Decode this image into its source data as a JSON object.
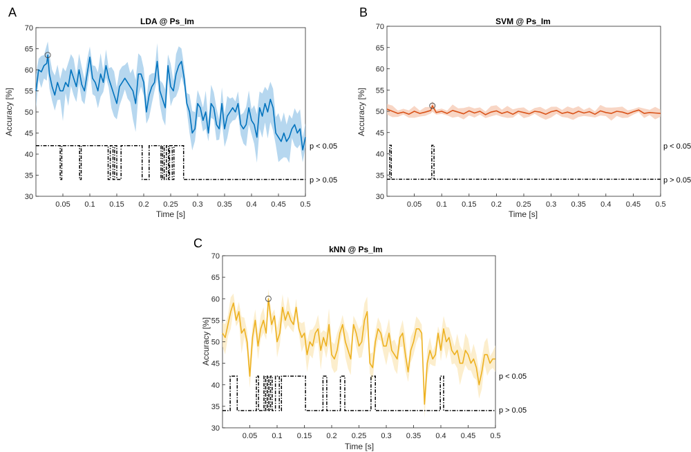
{
  "chart_data": [
    {
      "panel_label": "A",
      "title": "LDA @ Ps_Im",
      "type": "line",
      "xlabel": "Time [s]",
      "ylabel": "Accuracy [%]",
      "xlim": [
        0,
        0.5
      ],
      "ylim": [
        30,
        70
      ],
      "xticks": [
        "0.05",
        "0.1",
        "0.15",
        "0.2",
        "0.25",
        "0.3",
        "0.35",
        "0.4",
        "0.45",
        "0.5"
      ],
      "yticks": [
        "30",
        "35",
        "40",
        "45",
        "50",
        "55",
        "60",
        "65",
        "70"
      ],
      "color": "#0072BD",
      "band_color": "#9ECAE9",
      "sig_high_label": "p < 0.05",
      "sig_low_label": "p > 0.05",
      "sig_high_y": 42,
      "sig_low_y": 34,
      "peak": {
        "x": 0.022,
        "y": 63.5
      },
      "sig_low_intervals": [
        [
          0.045,
          0.048
        ],
        [
          0.081,
          0.084
        ],
        [
          0.134,
          0.138
        ],
        [
          0.143,
          0.146
        ],
        [
          0.15,
          0.158
        ],
        [
          0.197,
          0.21
        ],
        [
          0.232,
          0.235
        ],
        [
          0.238,
          0.242
        ],
        [
          0.246,
          0.248
        ],
        [
          0.253,
          0.256
        ],
        [
          0.274,
          0.5
        ]
      ],
      "x": [
        0,
        0.005,
        0.01,
        0.015,
        0.02,
        0.022,
        0.025,
        0.03,
        0.035,
        0.04,
        0.045,
        0.05,
        0.055,
        0.06,
        0.065,
        0.07,
        0.075,
        0.08,
        0.085,
        0.09,
        0.095,
        0.1,
        0.105,
        0.11,
        0.115,
        0.12,
        0.125,
        0.13,
        0.135,
        0.14,
        0.145,
        0.15,
        0.155,
        0.16,
        0.165,
        0.17,
        0.175,
        0.18,
        0.185,
        0.19,
        0.195,
        0.2,
        0.205,
        0.21,
        0.215,
        0.22,
        0.225,
        0.23,
        0.235,
        0.24,
        0.245,
        0.25,
        0.255,
        0.26,
        0.265,
        0.27,
        0.275,
        0.28,
        0.285,
        0.29,
        0.295,
        0.3,
        0.305,
        0.31,
        0.315,
        0.32,
        0.325,
        0.33,
        0.335,
        0.34,
        0.345,
        0.35,
        0.355,
        0.36,
        0.365,
        0.37,
        0.375,
        0.38,
        0.385,
        0.39,
        0.395,
        0.4,
        0.405,
        0.41,
        0.415,
        0.42,
        0.425,
        0.43,
        0.435,
        0.44,
        0.445,
        0.45,
        0.455,
        0.46,
        0.465,
        0.47,
        0.475,
        0.48,
        0.485,
        0.49,
        0.495,
        0.5
      ],
      "y": [
        55,
        60,
        59.5,
        61,
        61.5,
        63.5,
        59,
        56,
        54,
        57,
        55,
        55,
        57,
        56,
        60,
        58,
        56,
        60,
        56.5,
        55,
        59,
        63,
        58,
        57,
        55,
        59,
        57,
        61,
        58,
        56,
        54,
        52,
        56,
        57,
        58,
        57,
        56,
        55,
        52,
        59,
        59,
        57,
        50,
        54,
        56,
        57,
        62,
        55,
        53,
        51,
        61,
        56,
        55,
        59,
        61,
        62,
        58,
        52,
        50,
        45,
        46,
        52,
        51,
        48,
        50,
        45,
        52,
        51,
        47,
        46,
        52,
        46,
        49,
        50,
        51,
        50,
        52,
        47,
        46,
        47,
        51,
        48,
        47,
        44,
        51,
        49,
        52,
        50,
        53,
        51,
        45,
        44,
        43,
        45,
        43,
        44,
        46,
        47,
        45,
        46,
        41,
        44
      ]
    },
    {
      "panel_label": "B",
      "title": "SVM @ Ps_Im",
      "type": "line",
      "xlabel": "Time [s]",
      "ylabel": "Accuracy [%]",
      "xlim": [
        0,
        0.5
      ],
      "ylim": [
        30,
        70
      ],
      "xticks": [
        "0.05",
        "0.1",
        "0.15",
        "0.2",
        "0.25",
        "0.3",
        "0.35",
        "0.4",
        "0.45",
        "0.5"
      ],
      "yticks": [
        "30",
        "35",
        "40",
        "45",
        "50",
        "55",
        "60",
        "65",
        "70"
      ],
      "color": "#D95319",
      "band_color": "#F5C8B2",
      "sig_high_label": "p < 0.05",
      "sig_low_label": "p > 0.05",
      "sig_high_y": 42,
      "sig_low_y": 34,
      "peak": {
        "x": 0.083,
        "y": 51.3
      },
      "sig_high_intervals": [
        [
          0.005,
          0.008
        ],
        [
          0.082,
          0.086
        ]
      ],
      "x": [
        0,
        0.01,
        0.02,
        0.03,
        0.04,
        0.05,
        0.06,
        0.07,
        0.08,
        0.083,
        0.09,
        0.1,
        0.11,
        0.12,
        0.13,
        0.14,
        0.15,
        0.16,
        0.17,
        0.18,
        0.19,
        0.2,
        0.21,
        0.22,
        0.23,
        0.24,
        0.25,
        0.26,
        0.27,
        0.28,
        0.29,
        0.3,
        0.31,
        0.32,
        0.33,
        0.34,
        0.35,
        0.36,
        0.37,
        0.38,
        0.39,
        0.4,
        0.41,
        0.42,
        0.43,
        0.44,
        0.45,
        0.46,
        0.47,
        0.48,
        0.49,
        0.5
      ],
      "y": [
        50.5,
        50,
        49.5,
        49.8,
        49.3,
        50,
        49.5,
        49.8,
        50.2,
        51.3,
        49.7,
        50,
        49.5,
        50.2,
        49.8,
        49.4,
        50.1,
        49.6,
        50,
        49.2,
        49.8,
        50.1,
        49.5,
        49.9,
        49.3,
        50,
        49.7,
        49.4,
        50,
        49.8,
        49.3,
        49.9,
        50.2,
        49.5,
        49.8,
        49.4,
        50,
        49.6,
        49.9,
        49.3,
        50.1,
        49.7,
        49.5,
        50,
        49.8,
        49.4,
        49.9,
        50.3,
        49.5,
        49.7,
        49.6,
        49.5
      ]
    },
    {
      "panel_label": "C",
      "title": "kNN @ Ps_Im",
      "type": "line",
      "xlabel": "Time [s]",
      "ylabel": "Accuracy [%]",
      "xlim": [
        0,
        0.5
      ],
      "ylim": [
        30,
        70
      ],
      "xticks": [
        "0.05",
        "0.1",
        "0.15",
        "0.2",
        "0.25",
        "0.3",
        "0.35",
        "0.4",
        "0.45",
        "0.5"
      ],
      "yticks": [
        "30",
        "35",
        "40",
        "45",
        "50",
        "55",
        "60",
        "65",
        "70"
      ],
      "color": "#EDB120",
      "band_color": "#FBE8BC",
      "sig_high_label": "p < 0.05",
      "sig_low_label": "p > 0.05",
      "sig_high_y": 42,
      "sig_low_y": 34,
      "peak": {
        "x": 0.084,
        "y": 60
      },
      "sig_high_intervals": [
        [
          0.014,
          0.027
        ],
        [
          0.062,
          0.066
        ],
        [
          0.076,
          0.079
        ],
        [
          0.082,
          0.085
        ],
        [
          0.088,
          0.091
        ],
        [
          0.097,
          0.104
        ],
        [
          0.108,
          0.152
        ],
        [
          0.184,
          0.191
        ],
        [
          0.216,
          0.224
        ],
        [
          0.272,
          0.28
        ],
        [
          0.399,
          0.405
        ]
      ],
      "x": [
        0,
        0.005,
        0.01,
        0.015,
        0.02,
        0.025,
        0.03,
        0.035,
        0.04,
        0.045,
        0.05,
        0.055,
        0.06,
        0.065,
        0.07,
        0.075,
        0.08,
        0.084,
        0.09,
        0.095,
        0.1,
        0.105,
        0.11,
        0.115,
        0.12,
        0.125,
        0.13,
        0.135,
        0.14,
        0.145,
        0.15,
        0.155,
        0.16,
        0.165,
        0.17,
        0.175,
        0.18,
        0.185,
        0.19,
        0.195,
        0.2,
        0.205,
        0.21,
        0.215,
        0.22,
        0.225,
        0.23,
        0.235,
        0.24,
        0.245,
        0.25,
        0.255,
        0.26,
        0.265,
        0.27,
        0.275,
        0.28,
        0.285,
        0.29,
        0.295,
        0.3,
        0.305,
        0.31,
        0.315,
        0.32,
        0.325,
        0.33,
        0.335,
        0.34,
        0.345,
        0.35,
        0.355,
        0.36,
        0.365,
        0.37,
        0.375,
        0.38,
        0.385,
        0.39,
        0.395,
        0.4,
        0.405,
        0.41,
        0.415,
        0.42,
        0.425,
        0.43,
        0.435,
        0.44,
        0.445,
        0.45,
        0.455,
        0.46,
        0.465,
        0.47,
        0.475,
        0.48,
        0.485,
        0.49,
        0.495,
        0.5
      ],
      "y": [
        52,
        51,
        54,
        57,
        59,
        55,
        57,
        52,
        53,
        50,
        42,
        51,
        55,
        49,
        53,
        55,
        52,
        60,
        54,
        56,
        50,
        52,
        58,
        55,
        57,
        55,
        54,
        58,
        53,
        51,
        52,
        47,
        50,
        49,
        52,
        53,
        48,
        51,
        49,
        54,
        47,
        46,
        48,
        52,
        54,
        50,
        48,
        46,
        54,
        52,
        49,
        50,
        55,
        57,
        45,
        44,
        50,
        53,
        52,
        49,
        49,
        52,
        48,
        47,
        46,
        51,
        52,
        47,
        43,
        48,
        50,
        53,
        53,
        52,
        35.5,
        45,
        48,
        46,
        47,
        52,
        48,
        53,
        50,
        51,
        48,
        47,
        48,
        45,
        45,
        48,
        47,
        45,
        46,
        44,
        40,
        43,
        47,
        47,
        45,
        46,
        46
      ]
    }
  ]
}
